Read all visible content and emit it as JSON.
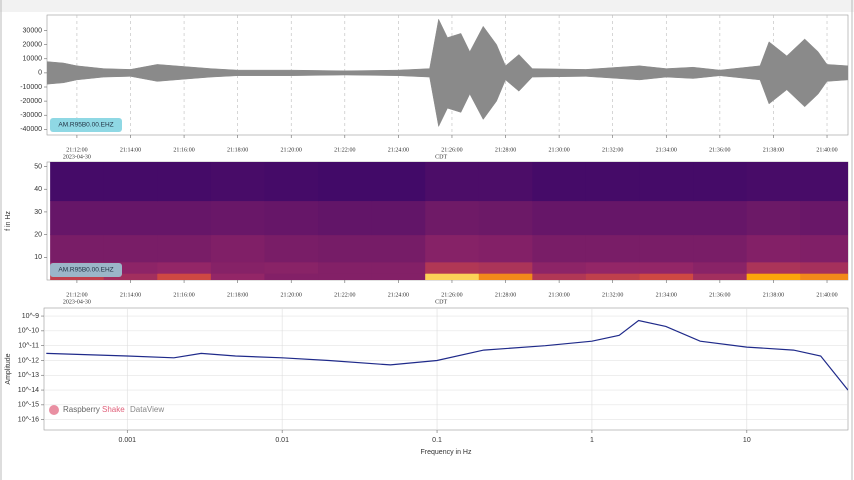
{
  "chart_data": [
    {
      "type": "area",
      "label": "AM.R95B0.00.EHZ",
      "color": "#8a8a8a",
      "x": [
        "21:10:53",
        "21:11:30",
        "21:12:00",
        "21:13:00",
        "21:14:00",
        "21:15:00",
        "21:16:00",
        "21:17:00",
        "21:18:00",
        "21:20:00",
        "21:22:00",
        "21:24:00",
        "21:25:10",
        "21:25:30",
        "21:25:50",
        "21:26:20",
        "21:26:40",
        "21:27:10",
        "21:27:40",
        "21:28:00",
        "21:28:30",
        "21:29:00",
        "21:31:00",
        "21:33:00",
        "21:34:00",
        "21:35:00",
        "21:36:00",
        "21:37:30",
        "21:37:50",
        "21:38:30",
        "21:39:10",
        "21:39:40",
        "21:40:00",
        "21:40:47"
      ],
      "values": [
        8000,
        7000,
        5000,
        3000,
        2500,
        6000,
        4500,
        3000,
        2000,
        2000,
        1500,
        2000,
        3000,
        38000,
        25000,
        28000,
        15000,
        33000,
        20000,
        5000,
        13000,
        3000,
        2500,
        5000,
        3000,
        4000,
        2000,
        5000,
        22000,
        12000,
        24000,
        15000,
        6000,
        5000
      ],
      "xlim": [
        "21:10:53",
        "21:40:47"
      ],
      "xticks": [
        "21:12:00",
        "21:14:00",
        "21:16:00",
        "21:18:00",
        "21:20:00",
        "21:22:00",
        "21:24:00",
        "21:26:00",
        "21:28:00",
        "21:30:00",
        "21:32:00",
        "21:34:00",
        "21:36:00",
        "21:38:00",
        "21:40:00"
      ],
      "date": "2023-04-30",
      "timezone": "CDT",
      "ylim": [
        -44000,
        41000
      ],
      "yticks": [
        30000,
        20000,
        10000,
        0,
        -10000,
        -20000,
        -30000,
        -40000
      ],
      "grid": true
    },
    {
      "type": "heatmap",
      "label": "AM.R95B0.00.EHZ",
      "ylabel": "f in Hz",
      "x_bins": [
        "21:11:00",
        "21:13:00",
        "21:15:00",
        "21:17:00",
        "21:19:00",
        "21:21:00",
        "21:23:00",
        "21:25:00",
        "21:27:00",
        "21:29:00",
        "21:31:00",
        "21:33:00",
        "21:35:00",
        "21:37:00",
        "21:39:00",
        "21:41:00"
      ],
      "y_bins": [
        0,
        3,
        8,
        20,
        35,
        52
      ],
      "values": [
        [
          0.65,
          0.55,
          0.7,
          0.5,
          0.45,
          0.45,
          0.45,
          0.95,
          0.85,
          0.6,
          0.65,
          0.7,
          0.55,
          0.9,
          0.85
        ],
        [
          0.5,
          0.48,
          0.5,
          0.46,
          0.47,
          0.45,
          0.45,
          0.6,
          0.58,
          0.48,
          0.5,
          0.5,
          0.47,
          0.58,
          0.56
        ],
        [
          0.42,
          0.42,
          0.42,
          0.44,
          0.42,
          0.41,
          0.41,
          0.46,
          0.45,
          0.42,
          0.42,
          0.42,
          0.42,
          0.45,
          0.44
        ],
        [
          0.36,
          0.36,
          0.36,
          0.37,
          0.36,
          0.35,
          0.35,
          0.39,
          0.38,
          0.36,
          0.36,
          0.36,
          0.36,
          0.38,
          0.37
        ],
        [
          0.26,
          0.26,
          0.26,
          0.27,
          0.26,
          0.25,
          0.25,
          0.28,
          0.28,
          0.26,
          0.26,
          0.26,
          0.26,
          0.27,
          0.27
        ]
      ],
      "xlim": [
        "21:10:53",
        "21:40:47"
      ],
      "xticks": [
        "21:12:00",
        "21:14:00",
        "21:16:00",
        "21:18:00",
        "21:20:00",
        "21:22:00",
        "21:24:00",
        "21:26:00",
        "21:28:00",
        "21:30:00",
        "21:32:00",
        "21:34:00",
        "21:36:00",
        "21:38:00",
        "21:40:00"
      ],
      "date": "2023-04-30",
      "timezone": "CDT",
      "ylim": [
        0,
        52
      ],
      "yticks": [
        10,
        20,
        30,
        40,
        50
      ]
    },
    {
      "type": "line",
      "color": "#1f2a8a",
      "ylabel": "Amplitude",
      "xlabel": "Frequency in Hz",
      "x": [
        0.0003,
        0.001,
        0.002,
        0.003,
        0.005,
        0.01,
        0.02,
        0.05,
        0.1,
        0.2,
        0.5,
        1,
        1.5,
        2,
        3,
        5,
        10,
        20,
        30,
        45
      ],
      "values": [
        3e-12,
        2e-12,
        1.5e-12,
        3e-12,
        2e-12,
        1.5e-12,
        1e-12,
        5e-13,
        1e-12,
        5e-12,
        1e-11,
        2e-11,
        5e-11,
        5e-10,
        2e-10,
        2e-11,
        8e-12,
        5e-12,
        2e-12,
        1e-14
      ],
      "xscale": "log",
      "yscale": "log",
      "grid": true,
      "xlim": [
        0.00029,
        45
      ],
      "xticks": [
        0.001,
        0.01,
        0.1,
        1,
        10
      ],
      "ylim": [
        2e-17,
        3.5e-09
      ],
      "yticks": [
        {
          "value": 1e-09,
          "label": "10^-9"
        },
        {
          "value": 1e-10,
          "label": "10^-10"
        },
        {
          "value": 1e-11,
          "label": "10^-11"
        },
        {
          "value": 1e-12,
          "label": "10^-12"
        },
        {
          "value": 1e-13,
          "label": "10^-13"
        },
        {
          "value": 1e-14,
          "label": "10^-14"
        },
        {
          "value": 1e-15,
          "label": "10^-15"
        },
        {
          "value": 1e-16,
          "label": "10^-16"
        }
      ],
      "brand": [
        "Raspberry",
        "Shake",
        "DataView"
      ]
    }
  ]
}
